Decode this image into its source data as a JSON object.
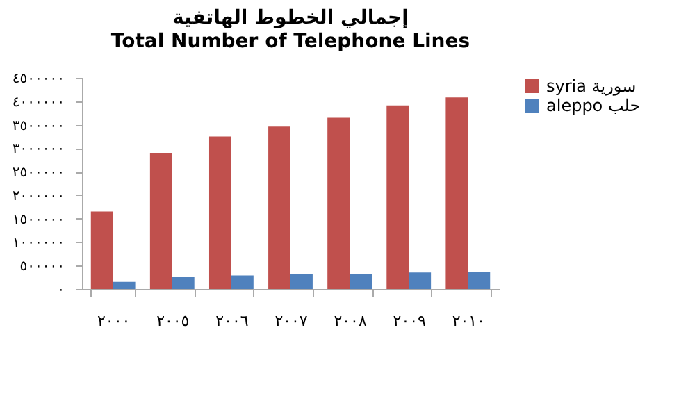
{
  "chart_data": {
    "type": "bar",
    "title": "إجمالي الخطوط الهاتفية",
    "subtitle": "Total Number of Telephone Lines",
    "categories": [
      "٢٠٠٠",
      "٢٠٠٥",
      "٢٠٠٦",
      "٢٠٠٧",
      "٢٠٠٨",
      "٢٠٠٩",
      "٢٠١٠"
    ],
    "series": [
      {
        "name": "syria سورية",
        "color": "#c0504d",
        "values": [
          1650000,
          2900000,
          3250000,
          3460000,
          3650000,
          3910000,
          4080000
        ]
      },
      {
        "name": "aleppo حلب",
        "color": "#4f81bd",
        "values": [
          150000,
          260000,
          290000,
          320000,
          320000,
          350000,
          360000
        ]
      }
    ],
    "ylim": [
      0,
      4500000
    ],
    "yticks": [
      {
        "value": 0,
        "label": "٠"
      },
      {
        "value": 500000,
        "label": "٥٠٠٠٠٠"
      },
      {
        "value": 1000000,
        "label": "١٠٠٠٠٠٠"
      },
      {
        "value": 1500000,
        "label": "١٥٠٠٠٠٠"
      },
      {
        "value": 2000000,
        "label": "٢٠٠٠٠٠٠"
      },
      {
        "value": 2500000,
        "label": "٢٥٠٠٠٠٠"
      },
      {
        "value": 3000000,
        "label": "٣٠٠٠٠٠٠"
      },
      {
        "value": 3500000,
        "label": "٣٥٠٠٠٠٠"
      },
      {
        "value": 4000000,
        "label": "٤٠٠٠٠٠٠"
      },
      {
        "value": 4500000,
        "label": "٤٥٠٠٠٠٠"
      }
    ],
    "grid": false,
    "legend": "right"
  }
}
